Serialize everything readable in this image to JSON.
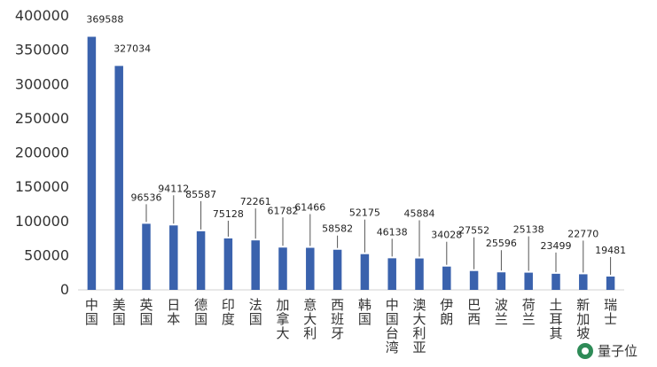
{
  "chart_data": {
    "type": "bar",
    "title": "",
    "xlabel": "",
    "ylabel": "",
    "ylim": [
      0,
      400000
    ],
    "yticks": [
      0,
      50000,
      100000,
      150000,
      200000,
      250000,
      300000,
      350000,
      400000
    ],
    "grid": false,
    "legend": "none",
    "bar_color": "#3a62ad",
    "categories": [
      "中国",
      "美国",
      "英国",
      "日本",
      "德国",
      "印度",
      "法国",
      "加拿大",
      "意大利",
      "西班牙",
      "韩国",
      "中国台湾",
      "澳大利亚",
      "伊朗",
      "巴西",
      "波兰",
      "荷兰",
      "土耳其",
      "新加坡",
      "瑞士"
    ],
    "values": [
      369588,
      327034,
      96536,
      94112,
      85587,
      75128,
      72261,
      61782,
      61466,
      58582,
      52175,
      46138,
      45884,
      34028,
      27552,
      25596,
      25138,
      23499,
      22770,
      19481
    ]
  },
  "watermark": {
    "text": "量子位",
    "icon": "wechat-logo-icon"
  }
}
